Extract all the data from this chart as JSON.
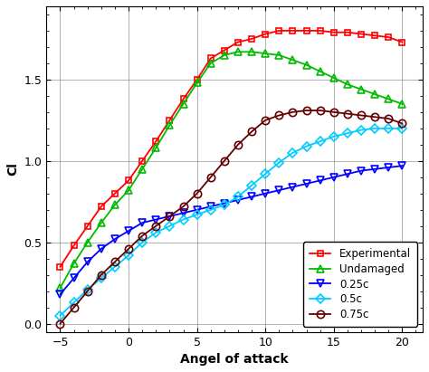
{
  "title": "",
  "xlabel": "Angel of attack",
  "ylabel": "Cl",
  "xlim": [
    -6,
    21.5
  ],
  "ylim": [
    -0.05,
    1.95
  ],
  "xticks": [
    -5,
    0,
    5,
    10,
    15,
    20
  ],
  "yticks": [
    0.0,
    0.5,
    1.0,
    1.5
  ],
  "background_color": "#ffffff",
  "series": [
    {
      "label": "Experimental",
      "color": "#ff0000",
      "marker": "s",
      "markersize": 5,
      "linewidth": 1.3,
      "markerfacecolor": "none",
      "x": [
        -5,
        -4,
        -3,
        -2,
        -1,
        0,
        1,
        2,
        3,
        4,
        5,
        6,
        7,
        8,
        9,
        10,
        11,
        12,
        13,
        14,
        15,
        16,
        17,
        18,
        19,
        20
      ],
      "y": [
        0.35,
        0.48,
        0.6,
        0.72,
        0.8,
        0.88,
        1.0,
        1.12,
        1.25,
        1.38,
        1.5,
        1.63,
        1.68,
        1.73,
        1.75,
        1.78,
        1.8,
        1.8,
        1.8,
        1.8,
        1.79,
        1.79,
        1.78,
        1.77,
        1.76,
        1.73
      ]
    },
    {
      "label": "Undamaged",
      "color": "#00bb00",
      "marker": "^",
      "markersize": 6,
      "linewidth": 1.3,
      "markerfacecolor": "none",
      "x": [
        -5,
        -4,
        -3,
        -2,
        -1,
        0,
        1,
        2,
        3,
        4,
        5,
        6,
        7,
        8,
        9,
        10,
        11,
        12,
        13,
        14,
        15,
        16,
        17,
        18,
        19,
        20
      ],
      "y": [
        0.22,
        0.37,
        0.5,
        0.62,
        0.73,
        0.82,
        0.95,
        1.08,
        1.22,
        1.35,
        1.48,
        1.6,
        1.65,
        1.67,
        1.67,
        1.66,
        1.65,
        1.62,
        1.59,
        1.55,
        1.51,
        1.47,
        1.44,
        1.41,
        1.38,
        1.35
      ]
    },
    {
      "label": "0.25c",
      "color": "#0000ff",
      "marker": "v",
      "markersize": 6,
      "linewidth": 1.3,
      "markerfacecolor": "none",
      "x": [
        -5,
        -4,
        -3,
        -2,
        -1,
        0,
        1,
        2,
        3,
        4,
        5,
        6,
        7,
        8,
        9,
        10,
        11,
        12,
        13,
        14,
        15,
        16,
        17,
        18,
        19,
        20
      ],
      "y": [
        0.18,
        0.28,
        0.38,
        0.46,
        0.52,
        0.57,
        0.62,
        0.64,
        0.66,
        0.68,
        0.7,
        0.72,
        0.74,
        0.76,
        0.78,
        0.8,
        0.82,
        0.84,
        0.86,
        0.88,
        0.9,
        0.92,
        0.94,
        0.95,
        0.96,
        0.97
      ]
    },
    {
      "label": "0.5c",
      "color": "#00ccff",
      "marker": "D",
      "markersize": 5,
      "linewidth": 1.3,
      "markerfacecolor": "none",
      "x": [
        -5,
        -4,
        -3,
        -2,
        -1,
        0,
        1,
        2,
        3,
        4,
        5,
        6,
        7,
        8,
        9,
        10,
        11,
        12,
        13,
        14,
        15,
        16,
        17,
        18,
        19,
        20
      ],
      "y": [
        0.05,
        0.13,
        0.21,
        0.28,
        0.35,
        0.42,
        0.5,
        0.56,
        0.6,
        0.64,
        0.67,
        0.7,
        0.73,
        0.78,
        0.85,
        0.92,
        0.99,
        1.05,
        1.09,
        1.12,
        1.15,
        1.17,
        1.19,
        1.2,
        1.2,
        1.2
      ]
    },
    {
      "label": "0.75c",
      "color": "#660000",
      "marker": "o",
      "markersize": 6,
      "linewidth": 1.3,
      "markerfacecolor": "none",
      "x": [
        -5,
        -4,
        -3,
        -2,
        -1,
        0,
        1,
        2,
        3,
        4,
        5,
        6,
        7,
        8,
        9,
        10,
        11,
        12,
        13,
        14,
        15,
        16,
        17,
        18,
        19,
        20
      ],
      "y": [
        0.0,
        0.1,
        0.2,
        0.3,
        0.38,
        0.46,
        0.54,
        0.6,
        0.66,
        0.72,
        0.8,
        0.9,
        1.0,
        1.1,
        1.18,
        1.25,
        1.28,
        1.3,
        1.31,
        1.31,
        1.3,
        1.29,
        1.28,
        1.27,
        1.26,
        1.23
      ]
    }
  ]
}
